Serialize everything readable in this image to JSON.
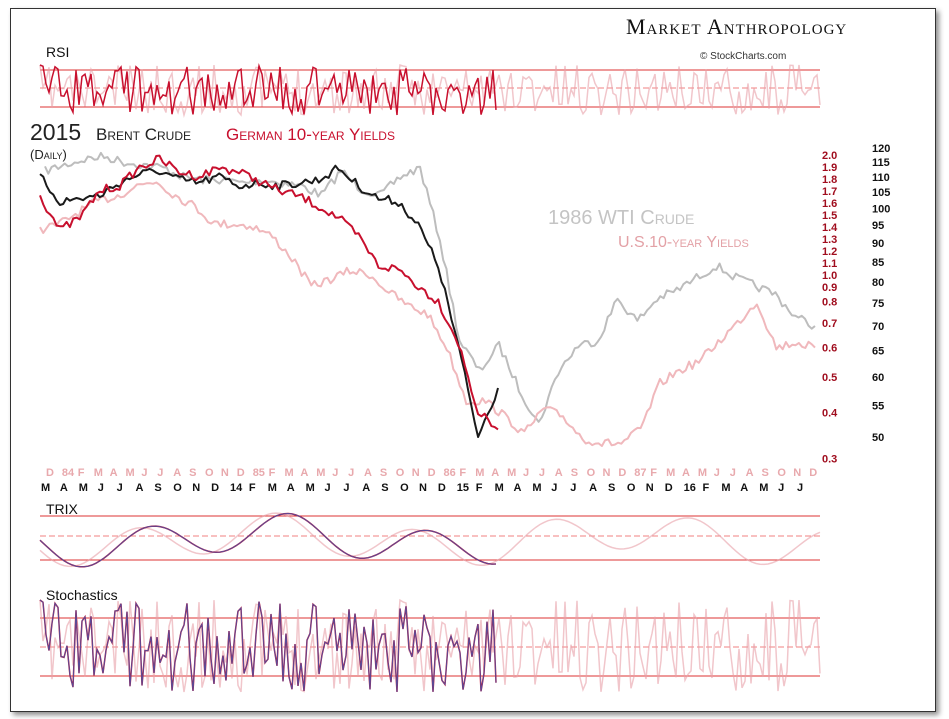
{
  "branding": {
    "logo_text": "Market Anthropology",
    "copyright": "© StockCharts.com"
  },
  "panels": {
    "rsi_label": "RSI",
    "trix_label": "TRIX",
    "stochastics_label": "Stochastics"
  },
  "colors": {
    "brent": "#1a1a1a",
    "german_yield": "#c8102e",
    "wti_1986": "#bdbdbd",
    "us_yield_1986": "#f0b8bc",
    "trix_blue": "#3b5bb5"
  },
  "chart_data": {
    "type": "line",
    "title": {
      "year": "2015",
      "brent": "Brent Crude",
      "german": "German 10-year Yields",
      "sub": "(Daily)"
    },
    "overlay_labels": {
      "wti": "1986 WTI Crude",
      "us": "U.S.10-year Yields"
    },
    "y_axis_price": {
      "ticks": [
        120,
        115,
        110,
        105,
        100,
        95,
        90,
        85,
        80,
        75,
        70,
        65,
        60,
        55,
        50
      ],
      "scale": "log"
    },
    "y_axis_yield": {
      "ticks": [
        "2.0",
        "1.9",
        "1.8",
        "1.7",
        "1.6",
        "1.5",
        "1.4",
        "1.3",
        "1.2",
        "1.1",
        "1.0",
        "0.9",
        "0.8",
        "0.7",
        "0.6",
        "0.5",
        "0.4",
        "0.3"
      ],
      "scale": "log"
    },
    "x_ticks_1986": [
      "D",
      "84",
      "F",
      "M",
      "A",
      "M",
      "J",
      "J",
      "A",
      "S",
      "O",
      "N",
      "D",
      "85",
      "F",
      "M",
      "A",
      "M",
      "J",
      "J",
      "A",
      "S",
      "O",
      "N",
      "D",
      "86",
      "F",
      "M",
      "A",
      "M",
      "J",
      "J",
      "A",
      "S",
      "O",
      "N",
      "D",
      "87",
      "F",
      "M",
      "A",
      "M",
      "J",
      "J",
      "A",
      "S",
      "O",
      "N",
      "D"
    ],
    "x_ticks_2015": [
      "M",
      "A",
      "M",
      "J",
      "J",
      "A",
      "S",
      "O",
      "N",
      "D",
      "14",
      "F",
      "M",
      "A",
      "M",
      "J",
      "J",
      "A",
      "S",
      "O",
      "N",
      "D",
      "15",
      "F",
      "M",
      "A",
      "M",
      "J",
      "J",
      "A",
      "S",
      "O",
      "N",
      "D",
      "16",
      "F",
      "M",
      "A",
      "M",
      "J",
      "J"
    ],
    "series": [
      {
        "name": "1986 WTI Crude",
        "axis": "price",
        "values": [
          112,
          114,
          116,
          117,
          115,
          114,
          113,
          110,
          109,
          109,
          108,
          109,
          108,
          107,
          104,
          112,
          106,
          104,
          110,
          113,
          91,
          67,
          61,
          66,
          58,
          52,
          61,
          66,
          67,
          76,
          71,
          76,
          78,
          81,
          84,
          81,
          79,
          77,
          72,
          70
        ]
      },
      {
        "name": "U.S.10-year Yields",
        "axis": "yield",
        "values": [
          1.25,
          1.3,
          1.4,
          1.5,
          1.55,
          1.65,
          1.7,
          1.55,
          1.45,
          1.3,
          1.3,
          1.28,
          1.2,
          1.05,
          0.88,
          0.92,
          0.97,
          0.95,
          0.85,
          0.78,
          0.74,
          0.6,
          0.43,
          0.43,
          0.39,
          0.35,
          0.41,
          0.39,
          0.34,
          0.33,
          0.33,
          0.36,
          0.48,
          0.52,
          0.55,
          0.62,
          0.7,
          0.8,
          0.6,
          0.62,
          0.6
        ]
      },
      {
        "name": "Brent Crude",
        "axis": "price",
        "dates": [
          "2013-03",
          "2013-04",
          "2013-05",
          "2013-06",
          "2013-07",
          "2013-08",
          "2013-09",
          "2013-10",
          "2013-11",
          "2013-12",
          "2014-01",
          "2014-02",
          "2014-03",
          "2014-04",
          "2014-05",
          "2014-06",
          "2014-07",
          "2014-08",
          "2014-09",
          "2014-10",
          "2014-11",
          "2014-12",
          "2015-01",
          "2015-02"
        ],
        "values": [
          110,
          102,
          103,
          104,
          108,
          111,
          112,
          109,
          108,
          110,
          107,
          108,
          107,
          108,
          109,
          113,
          107,
          103,
          102,
          95,
          84,
          66,
          50,
          58
        ]
      },
      {
        "name": "German 10-year Yields",
        "axis": "yield",
        "dates": [
          "2013-03",
          "2013-04",
          "2013-05",
          "2013-06",
          "2013-07",
          "2013-08",
          "2013-09",
          "2013-10",
          "2013-11",
          "2013-12",
          "2014-01",
          "2014-02",
          "2014-03",
          "2014-04",
          "2014-05",
          "2014-06",
          "2014-07",
          "2014-08",
          "2014-09",
          "2014-10",
          "2014-11",
          "2014-12",
          "2015-01",
          "2015-02"
        ],
        "values": [
          1.55,
          1.25,
          1.35,
          1.6,
          1.65,
          1.85,
          1.95,
          1.8,
          1.75,
          1.85,
          1.8,
          1.7,
          1.6,
          1.55,
          1.45,
          1.35,
          1.2,
          1.0,
          0.98,
          0.88,
          0.8,
          0.62,
          0.4,
          0.36
        ]
      }
    ],
    "grid": false
  }
}
